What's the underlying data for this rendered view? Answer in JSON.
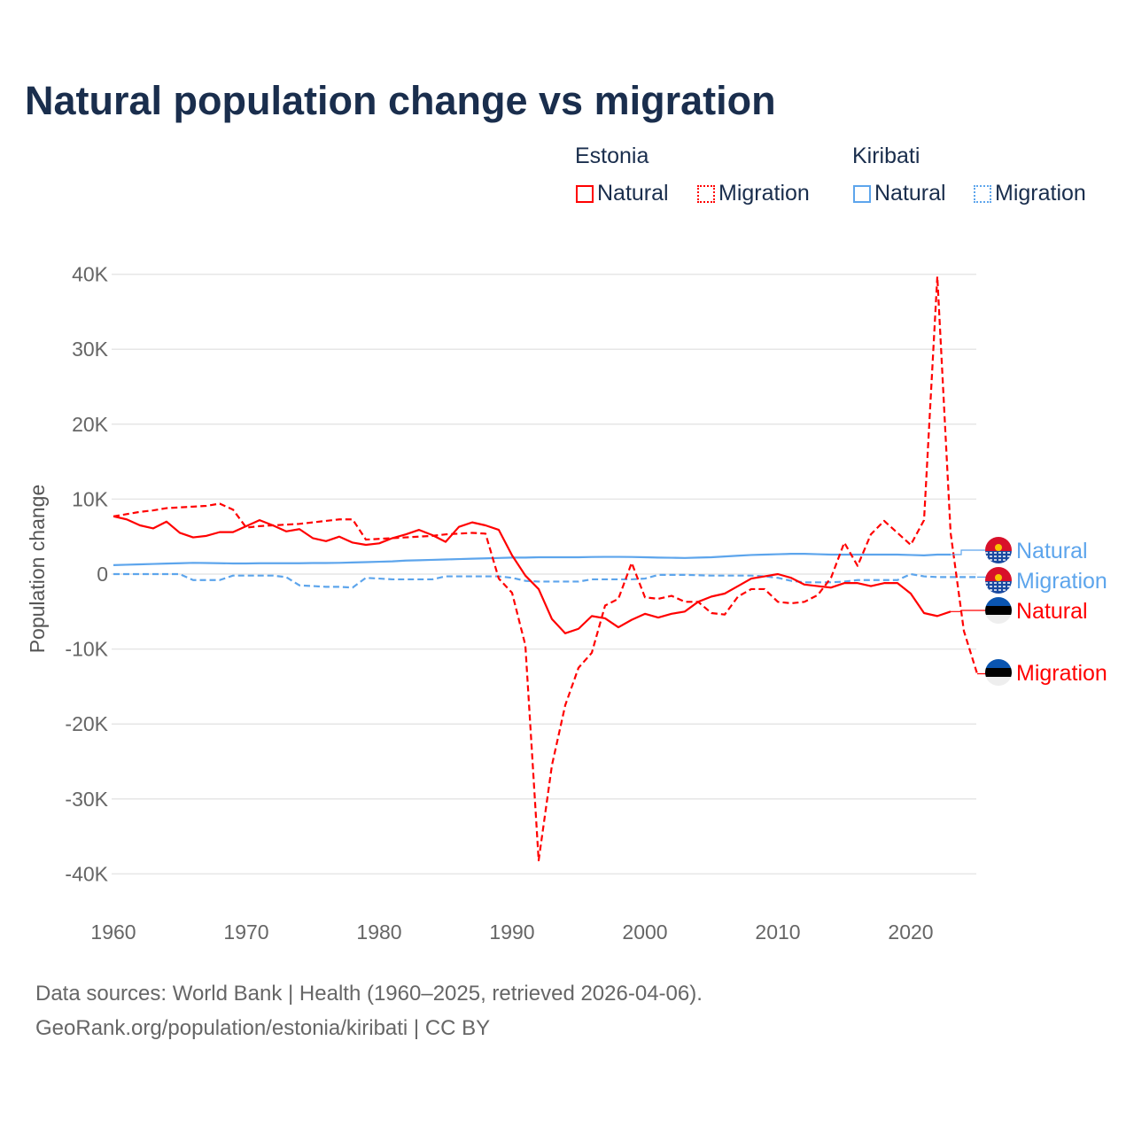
{
  "title": "Natural population change vs migration",
  "legend": {
    "groups": [
      {
        "name": "Estonia",
        "items": [
          {
            "label": "Natural",
            "style": "solid",
            "color": "#ff0000"
          },
          {
            "label": "Migration",
            "style": "dotted",
            "color": "#ff0000"
          }
        ]
      },
      {
        "name": "Kiribati",
        "items": [
          {
            "label": "Natural",
            "style": "solid",
            "color": "#5da5ec"
          },
          {
            "label": "Migration",
            "style": "dotted",
            "color": "#5da5ec"
          }
        ]
      }
    ]
  },
  "footer": {
    "line1": "Data sources: World Bank | Health (1960–2025, retrieved 2026-04-06).",
    "line2": "GeoRank.org/population/estonia/kiribati | CC BY"
  },
  "chart_data": {
    "type": "line",
    "ylabel": "Population change",
    "xlim": [
      1960,
      2025
    ],
    "ylim": [
      -40000,
      40000
    ],
    "xticks": [
      1960,
      1970,
      1980,
      1990,
      2000,
      2010,
      2020
    ],
    "xtick_labels": [
      "1960",
      "1970",
      "1980",
      "1990",
      "2000",
      "2010",
      "2020"
    ],
    "yticks": [
      40000,
      30000,
      20000,
      10000,
      0,
      -10000,
      -20000,
      -30000,
      -40000
    ],
    "ytick_labels": [
      "40K",
      "30K",
      "20K",
      "10K",
      "0",
      "-10K",
      "-20K",
      "-30K",
      "-40K"
    ],
    "series": [
      {
        "name": "Natural",
        "country": "Kiribati",
        "color": "#5da5ec",
        "dash": false,
        "start": 1960,
        "values": [
          1.2,
          1.25,
          1.3,
          1.35,
          1.4,
          1.45,
          1.5,
          1.48,
          1.45,
          1.42,
          1.42,
          1.45,
          1.45,
          1.45,
          1.45,
          1.48,
          1.48,
          1.5,
          1.55,
          1.6,
          1.65,
          1.7,
          1.8,
          1.85,
          1.9,
          1.95,
          2.0,
          2.05,
          2.1,
          2.15,
          2.2,
          2.2,
          2.25,
          2.25,
          2.25,
          2.25,
          2.28,
          2.3,
          2.3,
          2.28,
          2.25,
          2.2,
          2.18,
          2.15,
          2.2,
          2.25,
          2.35,
          2.45,
          2.55,
          2.6,
          2.65,
          2.7,
          2.7,
          2.65,
          2.6,
          2.6,
          2.6,
          2.6,
          2.6,
          2.6,
          2.55,
          2.5,
          2.6,
          2.6
        ]
      },
      {
        "name": "Migration",
        "country": "Kiribati",
        "color": "#5da5ec",
        "dash": true,
        "start": 1960,
        "values": [
          0.0,
          0.0,
          0.0,
          0.0,
          0.0,
          0.0,
          -0.8,
          -0.8,
          -0.8,
          -0.2,
          -0.2,
          -0.2,
          -0.2,
          -0.4,
          -1.5,
          -1.6,
          -1.7,
          -1.7,
          -1.8,
          -0.5,
          -0.6,
          -0.7,
          -0.7,
          -0.7,
          -0.7,
          -0.3,
          -0.3,
          -0.3,
          -0.3,
          -0.3,
          -0.5,
          -0.9,
          -1.0,
          -1.0,
          -1.0,
          -1.0,
          -0.7,
          -0.7,
          -0.7,
          -0.7,
          -0.6,
          -0.1,
          -0.1,
          -0.1,
          -0.15,
          -0.2,
          -0.2,
          -0.2,
          -0.2,
          -0.3,
          -0.5,
          -0.9,
          -1.1,
          -1.1,
          -1.1,
          -1.0,
          -0.8,
          -0.8,
          -0.8,
          -0.8,
          0.0,
          -0.3,
          -0.4,
          -0.4,
          -0.4,
          -0.4
        ]
      },
      {
        "name": "Natural",
        "country": "Estonia",
        "color": "#ff0000",
        "dash": false,
        "start": 1960,
        "values": [
          7.7,
          7.3,
          6.5,
          6.1,
          7.0,
          5.5,
          4.9,
          5.1,
          5.6,
          5.6,
          6.4,
          7.2,
          6.5,
          5.7,
          6.0,
          4.8,
          4.4,
          5.0,
          4.2,
          3.9,
          4.1,
          4.8,
          5.3,
          5.9,
          5.2,
          4.3,
          6.3,
          6.9,
          6.5,
          5.9,
          2.5,
          -0.2,
          -2.0,
          -6.0,
          -7.9,
          -7.3,
          -5.6,
          -5.9,
          -7.1,
          -6.1,
          -5.3,
          -5.8,
          -5.3,
          -5.0,
          -3.7,
          -3.0,
          -2.6,
          -1.6,
          -0.6,
          -0.3,
          0.0,
          -0.5,
          -1.4,
          -1.6,
          -1.8,
          -1.2,
          -1.2,
          -1.6,
          -1.2,
          -1.2,
          -2.6,
          -5.2,
          -5.6,
          -5.0
        ]
      },
      {
        "name": "Migration",
        "country": "Estonia",
        "color": "#ff0000",
        "dash": true,
        "start": 1960,
        "values": [
          7.7,
          8.0,
          8.3,
          8.5,
          8.8,
          8.9,
          9.0,
          9.1,
          9.4,
          8.6,
          6.2,
          6.4,
          6.5,
          6.6,
          6.7,
          6.9,
          7.1,
          7.3,
          7.3,
          4.6,
          4.7,
          4.8,
          4.9,
          5.0,
          5.1,
          5.3,
          5.4,
          5.5,
          5.4,
          -0.6,
          -2.5,
          -9.5,
          -38.2,
          -25.5,
          -17.5,
          -12.5,
          -10.5,
          -4.2,
          -3.3,
          1.5,
          -3.1,
          -3.3,
          -2.9,
          -3.7,
          -3.7,
          -5.2,
          -5.4,
          -3.0,
          -2.0,
          -2.0,
          -3.7,
          -3.9,
          -3.7,
          -2.8,
          -0.5,
          4.2,
          1.1,
          5.3,
          7.1,
          5.5,
          3.9,
          7.2,
          39.7,
          5.5,
          -7.6,
          -13.3
        ]
      }
    ],
    "value_unit": "thousands",
    "end_labels": [
      {
        "label": "Natural",
        "country": "Kiribati",
        "color": "#5da5ec"
      },
      {
        "label": "Migration",
        "country": "Kiribati",
        "color": "#5da5ec"
      },
      {
        "label": "Natural",
        "country": "Estonia",
        "color": "#ff0000"
      },
      {
        "label": "Migration",
        "country": "Estonia",
        "color": "#ff0000"
      }
    ]
  }
}
